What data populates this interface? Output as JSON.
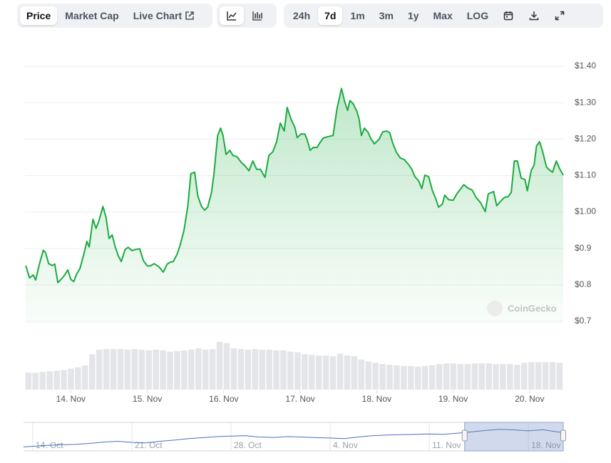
{
  "toolbar": {
    "views": [
      "Price",
      "Market Cap",
      "Live Chart"
    ],
    "selected_view": 0,
    "ranges": [
      "24h",
      "7d",
      "1m",
      "3m",
      "1y",
      "Max",
      "LOG"
    ],
    "selected_range": 1
  },
  "chart_data": [
    {
      "type": "area",
      "color": "#1aab3f",
      "watermark": "CoinGecko",
      "grid": true,
      "xlim": [
        13.4,
        20.44
      ],
      "ylim": [
        0.7,
        1.4
      ],
      "xticks": [
        {
          "value": 14,
          "label": "14. Nov"
        },
        {
          "value": 15,
          "label": "15. Nov"
        },
        {
          "value": 16,
          "label": "16. Nov"
        },
        {
          "value": 17,
          "label": "17. Nov"
        },
        {
          "value": 18,
          "label": "18. Nov"
        },
        {
          "value": 19,
          "label": "19. Nov"
        },
        {
          "value": 20,
          "label": "20. Nov"
        }
      ],
      "yticks": [
        {
          "value": 1.4,
          "label": "$1.40"
        },
        {
          "value": 1.3,
          "label": "$1.30"
        },
        {
          "value": 1.2,
          "label": "$1.20"
        },
        {
          "value": 1.1,
          "label": "$1.10"
        },
        {
          "value": 1.0,
          "label": "$1.00"
        },
        {
          "value": 0.9,
          "label": "$0.9"
        },
        {
          "value": 0.8,
          "label": "$0.8"
        },
        {
          "value": 0.7,
          "label": "$0.7"
        }
      ],
      "x": [
        13.41,
        13.46,
        13.51,
        13.54,
        13.59,
        13.64,
        13.67,
        13.71,
        13.76,
        13.79,
        13.83,
        13.88,
        13.92,
        13.96,
        14.0,
        14.04,
        14.07,
        14.12,
        14.17,
        14.21,
        14.24,
        14.29,
        14.33,
        14.37,
        14.42,
        14.46,
        14.5,
        14.54,
        14.58,
        14.62,
        14.66,
        14.71,
        14.75,
        14.8,
        14.85,
        14.9,
        14.95,
        15.0,
        15.04,
        15.09,
        15.15,
        15.21,
        15.26,
        15.3,
        15.34,
        15.39,
        15.43,
        15.48,
        15.53,
        15.57,
        15.62,
        15.66,
        15.71,
        15.75,
        15.79,
        15.84,
        15.87,
        15.92,
        15.96,
        15.99,
        16.03,
        16.08,
        16.12,
        16.17,
        16.23,
        16.28,
        16.33,
        16.38,
        16.43,
        16.48,
        16.54,
        16.59,
        16.64,
        16.69,
        16.74,
        16.79,
        16.83,
        16.88,
        16.93,
        16.96,
        17.01,
        17.06,
        17.09,
        17.13,
        17.17,
        17.22,
        17.26,
        17.3,
        17.35,
        17.39,
        17.43,
        17.48,
        17.54,
        17.58,
        17.62,
        17.65,
        17.69,
        17.74,
        17.77,
        17.8,
        17.84,
        17.89,
        17.92,
        17.97,
        18.03,
        18.08,
        18.13,
        18.17,
        18.21,
        18.26,
        18.31,
        18.36,
        18.41,
        18.46,
        18.5,
        18.55,
        18.59,
        18.63,
        18.68,
        18.73,
        18.77,
        18.81,
        18.86,
        18.89,
        18.94,
        19.0,
        19.05,
        19.1,
        19.14,
        19.19,
        19.25,
        19.3,
        19.36,
        19.42,
        19.46,
        19.53,
        19.57,
        19.61,
        19.67,
        19.72,
        19.76,
        19.8,
        19.84,
        19.89,
        19.94,
        19.97,
        20.02,
        20.06,
        20.09,
        20.13,
        20.17,
        20.22,
        20.25,
        20.3,
        20.35,
        20.39,
        20.44
      ],
      "values": [
        0.853,
        0.819,
        0.827,
        0.813,
        0.858,
        0.895,
        0.888,
        0.858,
        0.853,
        0.857,
        0.806,
        0.817,
        0.827,
        0.841,
        0.815,
        0.809,
        0.827,
        0.845,
        0.884,
        0.919,
        0.904,
        0.98,
        0.955,
        0.977,
        1.015,
        0.985,
        0.927,
        0.937,
        0.905,
        0.88,
        0.864,
        0.897,
        0.903,
        0.894,
        0.897,
        0.899,
        0.866,
        0.852,
        0.852,
        0.858,
        0.85,
        0.835,
        0.857,
        0.862,
        0.864,
        0.884,
        0.909,
        0.95,
        1.015,
        1.105,
        1.109,
        1.044,
        1.015,
        1.005,
        1.013,
        1.054,
        1.101,
        1.21,
        1.23,
        1.21,
        1.158,
        1.169,
        1.155,
        1.152,
        1.136,
        1.126,
        1.113,
        1.14,
        1.117,
        1.117,
        1.095,
        1.155,
        1.165,
        1.191,
        1.244,
        1.222,
        1.287,
        1.255,
        1.232,
        1.204,
        1.214,
        1.214,
        1.199,
        1.169,
        1.177,
        1.177,
        1.191,
        1.203,
        1.206,
        1.208,
        1.21,
        1.283,
        1.339,
        1.304,
        1.279,
        1.306,
        1.298,
        1.277,
        1.255,
        1.21,
        1.23,
        1.218,
        1.203,
        1.187,
        1.199,
        1.22,
        1.222,
        1.218,
        1.189,
        1.163,
        1.148,
        1.144,
        1.132,
        1.117,
        1.097,
        1.085,
        1.064,
        1.101,
        1.097,
        1.058,
        1.038,
        1.013,
        1.022,
        1.046,
        1.034,
        1.032,
        1.05,
        1.064,
        1.075,
        1.066,
        1.06,
        1.04,
        1.025,
        1.001,
        1.05,
        1.056,
        1.017,
        1.027,
        1.04,
        1.042,
        1.054,
        1.14,
        1.14,
        1.093,
        1.089,
        1.058,
        1.113,
        1.129,
        1.181,
        1.193,
        1.167,
        1.124,
        1.117,
        1.109,
        1.14,
        1.12,
        1.101
      ]
    },
    {
      "type": "bar",
      "color": "#e3e5e8",
      "ylim": [
        0,
        100
      ],
      "values": [
        26,
        26,
        27,
        28,
        29,
        30,
        32,
        34,
        37,
        54,
        61,
        62,
        62,
        62,
        61,
        62,
        61,
        60,
        61,
        60,
        58,
        59,
        60,
        61,
        63,
        61,
        62,
        73,
        71,
        63,
        62,
        61,
        62,
        61,
        61,
        60,
        60,
        58,
        57,
        54,
        53,
        52,
        52,
        51,
        55,
        52,
        51,
        46,
        43,
        41,
        39,
        38,
        37,
        36,
        36,
        35,
        36,
        37,
        39,
        40,
        40,
        39,
        39,
        40,
        40,
        40,
        39,
        39,
        39,
        38,
        41,
        42,
        42,
        42,
        42,
        41
      ]
    },
    {
      "type": "line",
      "color": "#4a6fc0",
      "xlim": [
        -0.65,
        37.46
      ],
      "ylim": [
        0.2,
        1.6
      ],
      "selection": [
        30.5,
        37.46
      ],
      "xticks": [
        {
          "value": 0,
          "label": "14. Oct"
        },
        {
          "value": 7,
          "label": "21. Oct"
        },
        {
          "value": 14,
          "label": "28. Oct"
        },
        {
          "value": 21,
          "label": "4. Nov"
        },
        {
          "value": 28,
          "label": "11. Nov"
        },
        {
          "value": 35,
          "label": "18. Nov"
        }
      ],
      "x": [
        -0.65,
        0,
        1,
        2,
        3,
        4,
        5,
        6,
        7,
        8,
        9,
        10,
        11,
        12,
        13,
        14,
        15,
        16,
        17,
        18,
        19,
        20,
        21,
        22,
        23,
        24,
        25,
        26,
        27,
        28,
        29,
        30,
        31,
        32,
        33,
        34,
        35,
        36,
        37,
        37.46
      ],
      "values": [
        0.37,
        0.4,
        0.45,
        0.48,
        0.5,
        0.55,
        0.62,
        0.66,
        0.6,
        0.58,
        0.66,
        0.72,
        0.8,
        0.85,
        0.9,
        0.93,
        0.95,
        0.88,
        0.86,
        0.9,
        0.88,
        0.85,
        0.83,
        0.8,
        0.88,
        0.95,
        0.98,
        1.0,
        1.02,
        1.04,
        1.02,
        1.08,
        1.15,
        1.22,
        1.28,
        1.25,
        1.2,
        1.26,
        1.15,
        1.12
      ]
    }
  ]
}
